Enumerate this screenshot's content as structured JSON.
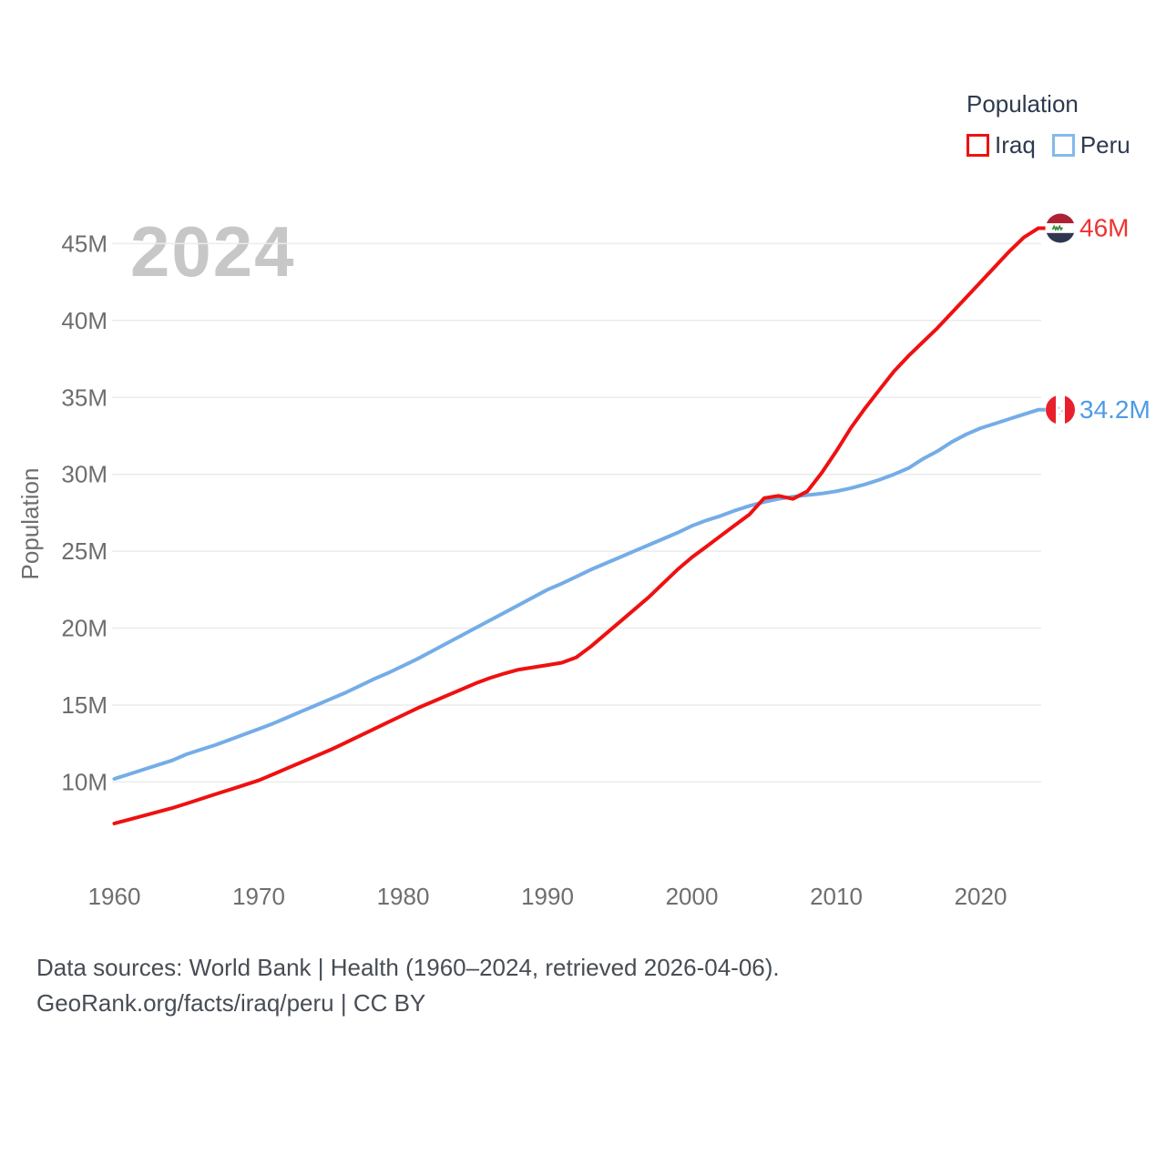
{
  "legend": {
    "title": "Population",
    "items": [
      {
        "label": "Iraq",
        "color": "#ee1111"
      },
      {
        "label": "Peru",
        "color": "#85b9ea"
      }
    ]
  },
  "watermark": {
    "text": "2024"
  },
  "axes": {
    "y_title": "Population",
    "y_ticks": [
      {
        "label": "10M",
        "value": 10
      },
      {
        "label": "15M",
        "value": 15
      },
      {
        "label": "20M",
        "value": 20
      },
      {
        "label": "25M",
        "value": 25
      },
      {
        "label": "30M",
        "value": 30
      },
      {
        "label": "35M",
        "value": 35
      },
      {
        "label": "40M",
        "value": 40
      },
      {
        "label": "45M",
        "value": 45
      }
    ],
    "x_ticks": [
      {
        "label": "1960",
        "value": 1960
      },
      {
        "label": "1970",
        "value": 1970
      },
      {
        "label": "1980",
        "value": 1980
      },
      {
        "label": "1990",
        "value": 1990
      },
      {
        "label": "2000",
        "value": 2000
      },
      {
        "label": "2010",
        "value": 2010
      },
      {
        "label": "2020",
        "value": 2020
      }
    ]
  },
  "end_markers": [
    {
      "series": "Iraq",
      "label": "46M",
      "label_color": "#f03131",
      "flag": "iraq-flag-icon"
    },
    {
      "series": "Peru",
      "label": "34.2M",
      "label_color": "#4d9be6",
      "flag": "peru-flag-icon"
    }
  ],
  "footer": {
    "line1": "Data sources: World Bank | Health (1960–2024, retrieved 2026-04-06).",
    "line2": "GeoRank.org/facts/iraq/peru | CC BY"
  },
  "chart_data": {
    "type": "line",
    "title": "Population",
    "xlabel": "",
    "ylabel": "Population",
    "xlim": [
      1960,
      2024
    ],
    "ylim": [
      6,
      47.5
    ],
    "grid": "horizontal",
    "legend_position": "top-right",
    "x": [
      1960,
      1961,
      1962,
      1963,
      1964,
      1965,
      1966,
      1967,
      1968,
      1969,
      1970,
      1971,
      1972,
      1973,
      1974,
      1975,
      1976,
      1977,
      1978,
      1979,
      1980,
      1981,
      1982,
      1983,
      1984,
      1985,
      1986,
      1987,
      1988,
      1989,
      1990,
      1991,
      1992,
      1993,
      1994,
      1995,
      1996,
      1997,
      1998,
      1999,
      2000,
      2001,
      2002,
      2003,
      2004,
      2005,
      2006,
      2007,
      2008,
      2009,
      2010,
      2011,
      2012,
      2013,
      2014,
      2015,
      2016,
      2017,
      2018,
      2019,
      2020,
      2021,
      2022,
      2023,
      2024
    ],
    "series": [
      {
        "name": "Iraq",
        "color": "#ee1111",
        "values": [
          7.3,
          7.55,
          7.8,
          8.05,
          8.3,
          8.6,
          8.9,
          9.2,
          9.5,
          9.8,
          10.1,
          10.5,
          10.9,
          11.3,
          11.7,
          12.1,
          12.55,
          13.0,
          13.45,
          13.9,
          14.35,
          14.8,
          15.2,
          15.6,
          16.0,
          16.4,
          16.75,
          17.05,
          17.3,
          17.45,
          17.6,
          17.75,
          18.1,
          18.8,
          19.6,
          20.4,
          21.2,
          22.0,
          22.9,
          23.8,
          24.6,
          25.3,
          26.0,
          26.7,
          27.4,
          28.45,
          28.6,
          28.4,
          28.9,
          30.1,
          31.5,
          33.0,
          34.3,
          35.5,
          36.7,
          37.7,
          38.6,
          39.5,
          40.5,
          41.5,
          42.5,
          43.5,
          44.5,
          45.4,
          46.0
        ]
      },
      {
        "name": "Peru",
        "color": "#74ade6",
        "values": [
          10.2,
          10.5,
          10.8,
          11.1,
          11.4,
          11.8,
          12.1,
          12.4,
          12.75,
          13.1,
          13.45,
          13.8,
          14.2,
          14.6,
          15.0,
          15.4,
          15.8,
          16.25,
          16.7,
          17.1,
          17.55,
          18.0,
          18.5,
          19.0,
          19.5,
          20.0,
          20.5,
          21.0,
          21.5,
          22.0,
          22.5,
          22.9,
          23.35,
          23.8,
          24.2,
          24.6,
          25.0,
          25.4,
          25.8,
          26.2,
          26.65,
          27.0,
          27.3,
          27.65,
          27.95,
          28.2,
          28.4,
          28.55,
          28.65,
          28.75,
          28.9,
          29.1,
          29.35,
          29.65,
          30.0,
          30.4,
          31.0,
          31.5,
          32.1,
          32.6,
          33.0,
          33.3,
          33.6,
          33.9,
          34.2
        ]
      }
    ]
  }
}
